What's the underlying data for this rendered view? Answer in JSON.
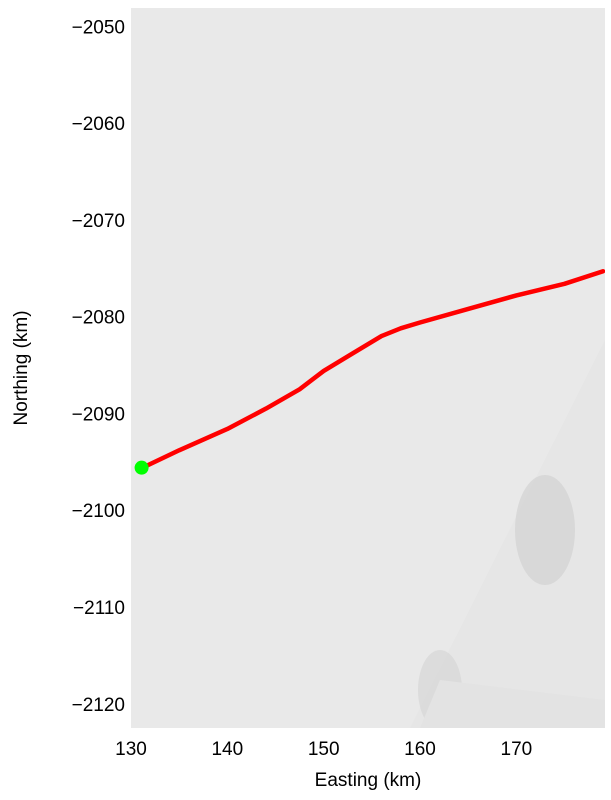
{
  "chart_data": {
    "type": "line",
    "xlabel": "Easting (km)",
    "ylabel": "Northing (km)",
    "x": [
      131,
      135,
      140,
      144,
      147.5,
      150,
      153,
      156,
      158,
      160,
      165,
      170,
      175,
      179
    ],
    "values": [
      -2095.5,
      -2093.6,
      -2091.4,
      -2089.3,
      -2087.3,
      -2085.4,
      -2083.6,
      -2081.8,
      -2081.0,
      -2080.4,
      -2079.0,
      -2077.6,
      -2076.4,
      -2075.1
    ],
    "color": "#ff0000",
    "marker": {
      "x": 131.1,
      "y": -2095.4,
      "color": "#00ff00"
    },
    "xlim": [
      130,
      179.2
    ],
    "ylim": [
      -2122.3,
      -2047.9
    ],
    "xticks": [
      130,
      140,
      150,
      160,
      170
    ],
    "yticks": [
      {
        "value": -2050,
        "label": "−2050"
      },
      {
        "value": -2060,
        "label": "−2060"
      },
      {
        "value": -2070,
        "label": "−2070"
      },
      {
        "value": -2080,
        "label": "−2080"
      },
      {
        "value": -2090,
        "label": "−2090"
      },
      {
        "value": -2100,
        "label": "−2100"
      },
      {
        "value": -2110,
        "label": "−2110"
      },
      {
        "value": -2120,
        "label": "−2120"
      }
    ]
  }
}
